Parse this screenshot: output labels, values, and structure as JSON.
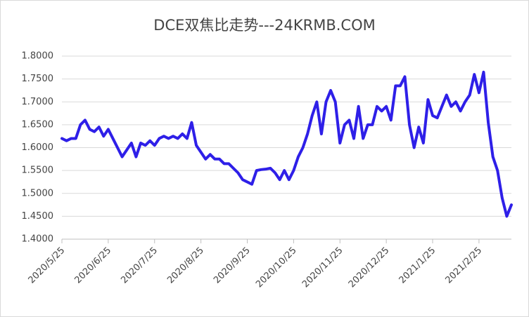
{
  "chart_data": {
    "type": "line",
    "title": "DCE双焦比走势---24KRMB.COM",
    "categories": [
      "2020/5/25",
      null,
      null,
      null,
      null,
      null,
      null,
      null,
      null,
      null,
      "2020/6/25",
      null,
      null,
      null,
      null,
      null,
      null,
      null,
      null,
      null,
      "2020/7/25",
      null,
      null,
      null,
      null,
      null,
      null,
      null,
      null,
      null,
      "2020/8/25",
      null,
      null,
      null,
      null,
      null,
      null,
      null,
      null,
      null,
      "2020/9/25",
      null,
      null,
      null,
      null,
      null,
      null,
      null,
      null,
      null,
      "2020/10/25",
      null,
      null,
      null,
      null,
      null,
      null,
      null,
      null,
      null,
      "2020/11/25",
      null,
      null,
      null,
      null,
      null,
      null,
      null,
      null,
      null,
      "2020/12/25",
      null,
      null,
      null,
      null,
      null,
      null,
      null,
      null,
      null,
      "2021/1/25",
      null,
      null,
      null,
      null,
      null,
      null,
      null,
      null,
      null,
      "2021/2/25",
      null,
      null,
      null,
      null,
      null,
      null,
      null
    ],
    "values": [
      1.62,
      1.615,
      1.62,
      1.62,
      1.65,
      1.66,
      1.64,
      1.635,
      1.645,
      1.625,
      1.64,
      1.62,
      1.6,
      1.58,
      1.595,
      1.61,
      1.58,
      1.61,
      1.605,
      1.615,
      1.605,
      1.62,
      1.625,
      1.62,
      1.625,
      1.62,
      1.63,
      1.62,
      1.655,
      1.605,
      1.59,
      1.575,
      1.585,
      1.575,
      1.575,
      1.565,
      1.565,
      1.555,
      1.545,
      1.53,
      1.525,
      1.52,
      1.55,
      1.552,
      1.553,
      1.555,
      1.545,
      1.53,
      1.55,
      1.53,
      1.55,
      1.58,
      1.6,
      1.63,
      1.67,
      1.7,
      1.63,
      1.7,
      1.725,
      1.7,
      1.61,
      1.65,
      1.66,
      1.62,
      1.69,
      1.62,
      1.65,
      1.65,
      1.69,
      1.68,
      1.69,
      1.66,
      1.735,
      1.735,
      1.755,
      1.65,
      1.6,
      1.645,
      1.61,
      1.705,
      1.67,
      1.665,
      1.69,
      1.715,
      1.69,
      1.7,
      1.68,
      1.7,
      1.715,
      1.76,
      1.72,
      1.765,
      1.655,
      1.58,
      1.55,
      1.49,
      1.45,
      1.475
    ],
    "color": "#2e1fe8",
    "ylim": [
      1.4,
      1.8
    ],
    "yticks": [
      {
        "value": 1.4,
        "label": "1.4000"
      },
      {
        "value": 1.45,
        "label": "1.4500"
      },
      {
        "value": 1.5,
        "label": "1.5000"
      },
      {
        "value": 1.55,
        "label": "1.5500"
      },
      {
        "value": 1.6,
        "label": "1.6000"
      },
      {
        "value": 1.65,
        "label": "1.6500"
      },
      {
        "value": 1.7,
        "label": "1.7000"
      },
      {
        "value": 1.75,
        "label": "1.7500"
      },
      {
        "value": 1.8,
        "label": "1.8000"
      }
    ],
    "grid": true
  }
}
